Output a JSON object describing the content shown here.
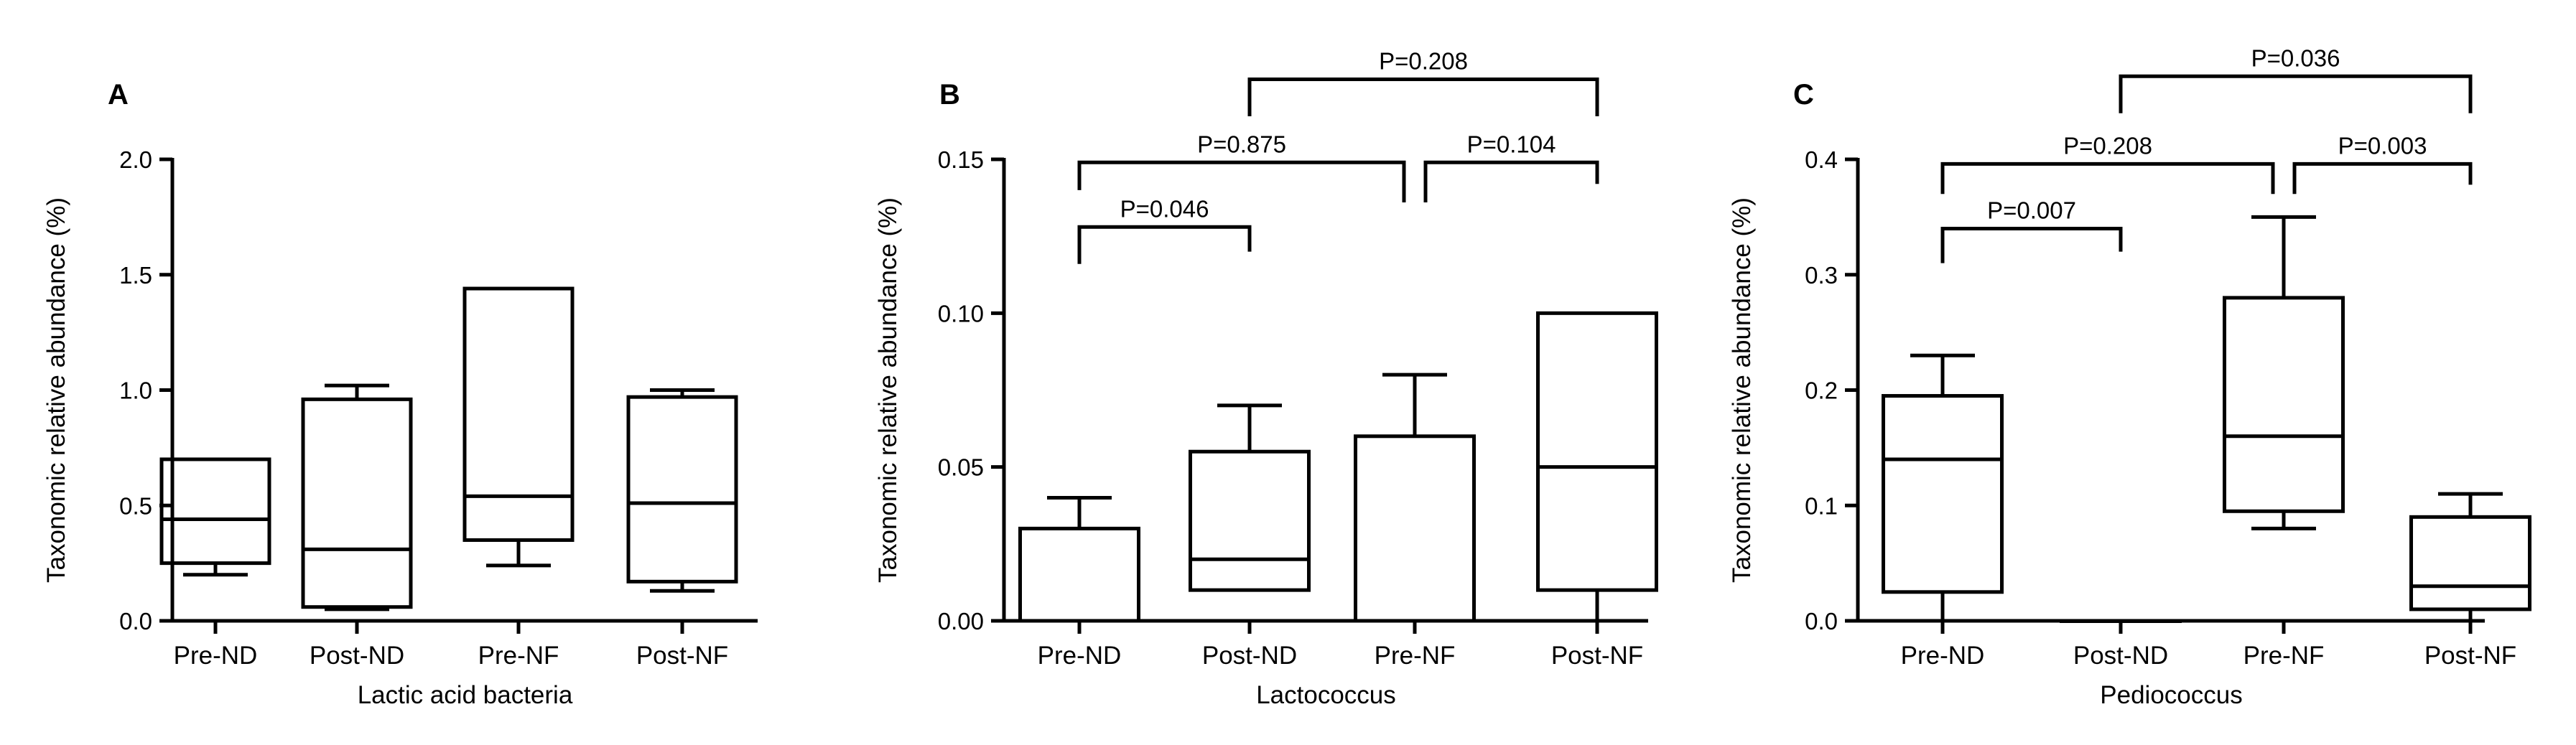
{
  "chart_data": [
    {
      "type": "box",
      "panel_label": "A",
      "xlabel": "Lactic acid bacteria",
      "ylabel": "Taxonomic relative abundance (%)",
      "ylim": [
        0,
        2.0
      ],
      "yticks": [
        "0.0",
        "0.5",
        "1.0",
        "1.5",
        "2.0"
      ],
      "categories": [
        "Pre-ND",
        "Post-ND",
        "Pre-NF",
        "Post-NF"
      ],
      "boxes": [
        {
          "min": 0.2,
          "q1": 0.25,
          "median": 0.44,
          "q3": 0.7,
          "max": 0.7
        },
        {
          "min": 0.05,
          "q1": 0.06,
          "median": 0.31,
          "q3": 0.96,
          "max": 1.02
        },
        {
          "min": 0.24,
          "q1": 0.35,
          "median": 0.54,
          "q3": 1.44,
          "max": 1.44
        },
        {
          "min": 0.13,
          "q1": 0.17,
          "median": 0.51,
          "q3": 0.97,
          "max": 1.0
        }
      ],
      "brackets": []
    },
    {
      "type": "box",
      "panel_label": "B",
      "xlabel": "Lactococcus",
      "ylabel": "Taxonomic relative abundance (%)",
      "ylim": [
        0,
        0.15
      ],
      "yticks": [
        "0.00",
        "0.05",
        "0.10",
        "0.15"
      ],
      "categories": [
        "Pre-ND",
        "Post-ND",
        "Pre-NF",
        "Post-NF"
      ],
      "boxes": [
        {
          "min": 0.0,
          "q1": 0.0,
          "median": 0.0,
          "q3": 0.03,
          "max": 0.04
        },
        {
          "min": 0.01,
          "q1": 0.01,
          "median": 0.02,
          "q3": 0.055,
          "max": 0.07
        },
        {
          "min": 0.0,
          "q1": 0.0,
          "median": 0.0,
          "q3": 0.06,
          "max": 0.08
        },
        {
          "min": 0.0,
          "q1": 0.01,
          "median": 0.05,
          "q3": 0.1,
          "max": 0.1
        }
      ],
      "brackets": [
        {
          "from": 0,
          "to": 1,
          "label": "P=0.046",
          "y": 0.128,
          "left_drop": 0.116,
          "right_drop": 0.12
        },
        {
          "from": 0,
          "to": 2,
          "label": "P=0.875",
          "y": 0.149,
          "left_drop": 0.14,
          "right_drop": 0.136
        },
        {
          "from": 2,
          "to": 3,
          "label": "P=0.104",
          "y": 0.149,
          "left_drop": 0.136,
          "right_drop": 0.142
        },
        {
          "from": 1,
          "to": 3,
          "label": "P=0.208",
          "y": 0.176,
          "left_drop": 0.164,
          "right_drop": 0.164
        }
      ]
    },
    {
      "type": "box",
      "panel_label": "C",
      "xlabel": "Pediococcus",
      "ylabel": "Taxonomic relative abundance (%)",
      "ylim": [
        0,
        0.4
      ],
      "yticks": [
        "0.0",
        "0.1",
        "0.2",
        "0.3",
        "0.4"
      ],
      "categories": [
        "Pre-ND",
        "Post-ND",
        "Pre-NF",
        "Post-NF"
      ],
      "boxes": [
        {
          "min": 0.0,
          "q1": 0.025,
          "median": 0.14,
          "q3": 0.195,
          "max": 0.23
        },
        {
          "min": 0.0,
          "q1": 0.0,
          "median": 0.0,
          "q3": 0.0,
          "max": 0.0
        },
        {
          "min": 0.08,
          "q1": 0.095,
          "median": 0.16,
          "q3": 0.28,
          "max": 0.35
        },
        {
          "min": 0.0,
          "q1": 0.01,
          "median": 0.03,
          "q3": 0.09,
          "max": 0.11
        }
      ],
      "brackets": [
        {
          "from": 0,
          "to": 1,
          "label": "P=0.007",
          "y": 0.34,
          "left_drop": 0.31,
          "right_drop": 0.32
        },
        {
          "from": 0,
          "to": 2,
          "label": "P=0.208",
          "y": 0.396,
          "left_drop": 0.37,
          "right_drop": 0.37
        },
        {
          "from": 2,
          "to": 3,
          "label": "P=0.003",
          "y": 0.396,
          "left_drop": 0.37,
          "right_drop": 0.378
        },
        {
          "from": 1,
          "to": 3,
          "label": "P=0.036",
          "y": 0.472,
          "left_drop": 0.44,
          "right_drop": 0.44
        }
      ]
    }
  ]
}
